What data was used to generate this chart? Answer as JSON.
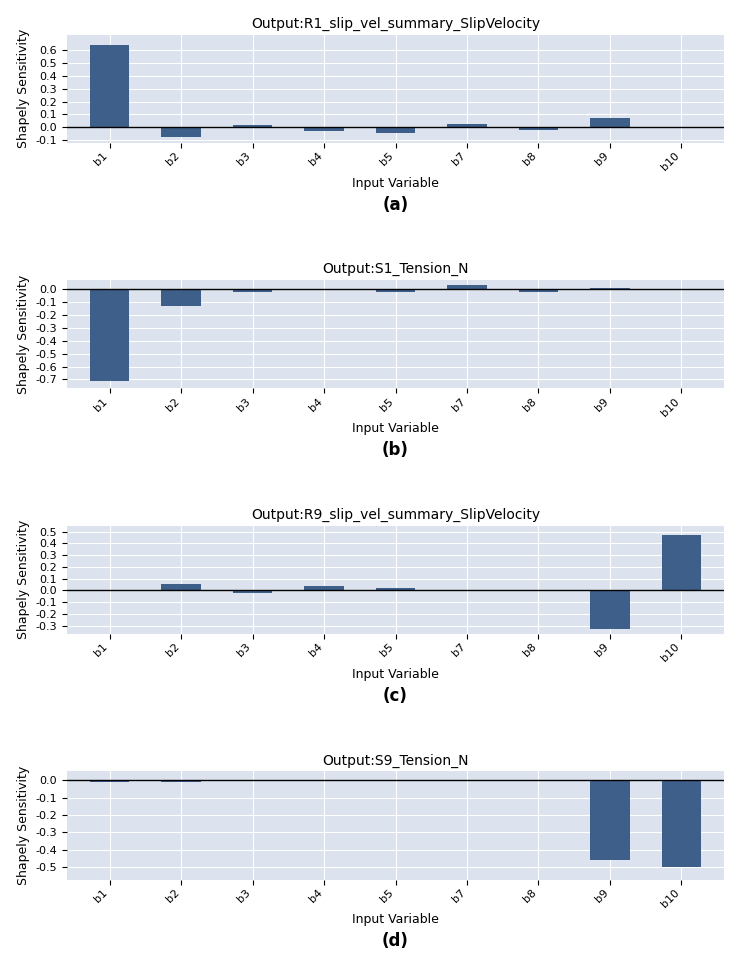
{
  "subplots": [
    {
      "title": "Output:R1_slip_vel_summary_SlipVelocity",
      "label": "(a)",
      "categories": [
        "b1",
        "b2",
        "b3",
        "b4",
        "b5",
        "b7",
        "b8",
        "b9",
        "b10"
      ],
      "values": [
        0.64,
        -0.075,
        0.02,
        -0.03,
        -0.04,
        0.03,
        -0.02,
        0.07,
        0.0
      ],
      "ylim": [
        -0.12,
        0.72
      ],
      "yticks": [
        -0.1,
        0.0,
        0.1,
        0.2,
        0.3,
        0.4,
        0.5,
        0.6
      ]
    },
    {
      "title": "Output:S1_Tension_N",
      "label": "(b)",
      "categories": [
        "b1",
        "b2",
        "b3",
        "b4",
        "b5",
        "b7",
        "b8",
        "b9",
        "b10"
      ],
      "values": [
        -0.71,
        -0.13,
        -0.02,
        0.0,
        -0.02,
        0.03,
        -0.02,
        0.01,
        -0.01
      ],
      "ylim": [
        -0.77,
        0.07
      ],
      "yticks": [
        -0.7,
        -0.6,
        -0.5,
        -0.4,
        -0.3,
        -0.2,
        -0.1,
        0.0
      ]
    },
    {
      "title": "Output:R9_slip_vel_summary_SlipVelocity",
      "label": "(c)",
      "categories": [
        "b1",
        "b2",
        "b3",
        "b4",
        "b5",
        "b7",
        "b8",
        "b9",
        "b10"
      ],
      "values": [
        0.0,
        0.055,
        -0.025,
        0.038,
        0.018,
        0.005,
        -0.002,
        -0.33,
        0.47
      ],
      "ylim": [
        -0.37,
        0.55
      ],
      "yticks": [
        -0.3,
        -0.2,
        -0.1,
        0.0,
        0.1,
        0.2,
        0.3,
        0.4,
        0.5
      ]
    },
    {
      "title": "Output:S9_Tension_N",
      "label": "(d)",
      "categories": [
        "b1",
        "b2",
        "b3",
        "b4",
        "b5",
        "b7",
        "b8",
        "b9",
        "b10"
      ],
      "values": [
        -0.01,
        -0.01,
        0.0,
        0.0,
        0.0,
        0.0,
        0.0,
        -0.46,
        -0.5
      ],
      "ylim": [
        -0.57,
        0.05
      ],
      "yticks": [
        -0.5,
        -0.4,
        -0.3,
        -0.2,
        -0.1,
        0.0
      ]
    }
  ],
  "bar_color": "#3d5f8a",
  "bg_color": "#dce3ee",
  "xlabel": "Input Variable",
  "ylabel": "Shapely Sensitivity",
  "bar_width": 0.55,
  "title_fontsize": 10,
  "label_fontsize": 12,
  "tick_fontsize": 8,
  "axis_label_fontsize": 9
}
